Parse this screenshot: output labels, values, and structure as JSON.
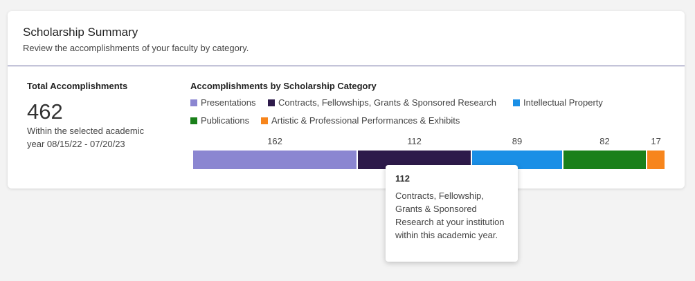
{
  "card": {
    "title": "Scholarship Summary",
    "subtitle": "Review the accomplishments of your faculty by category."
  },
  "total": {
    "heading": "Total Accomplishments",
    "value": "462",
    "description": "Within the selected academic year 08/15/22 - 07/20/23"
  },
  "chart": {
    "heading": "Accomplishments by Scholarship Category"
  },
  "colors": {
    "presentations": "#8b86d1",
    "contracts": "#2d1a4a",
    "intellectual_property": "#1a8fe6",
    "publications": "#1a801a",
    "artistic": "#f7851c",
    "header_rule": "#5f5f97"
  },
  "chart_data": {
    "type": "bar",
    "orientation": "horizontal-stacked",
    "categories": [
      "Presentations",
      "Contracts, Fellowships, Grants & Sponsored Research",
      "Intellectual Property",
      "Publications",
      "Artistic & Professional Performances & Exhibits"
    ],
    "values": [
      162,
      112,
      89,
      82,
      17
    ],
    "value_labels": [
      "162",
      "112",
      "89",
      "82",
      "17"
    ],
    "legend_placement": "top",
    "grid": false
  },
  "tooltip": {
    "value": "112",
    "text": "Contracts, Fellowship, Grants & Sponsored Research at your institution within this academic year."
  }
}
